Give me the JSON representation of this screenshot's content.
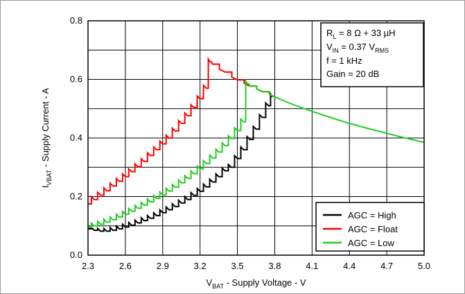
{
  "chart_data": {
    "type": "line",
    "xlabel": {
      "main": "V",
      "sub": "BAT",
      "rest": " - Supply Voltage - V"
    },
    "ylabel": {
      "main": "I",
      "sub": "VBAT",
      "rest": " - Supply Current - A"
    },
    "xlim": [
      2.3,
      5.0
    ],
    "ylim": [
      0.0,
      0.8
    ],
    "xticks": [
      "2.3",
      "2.6",
      "2.9",
      "3.2",
      "3.5",
      "3.8",
      "4.1",
      "4.4",
      "4.7",
      "5.0"
    ],
    "yticks": [
      "0.0",
      "0.2",
      "0.4",
      "0.6",
      "0.8"
    ],
    "grid": true,
    "legend_position": "bottom-right",
    "annotation": {
      "line1": {
        "a": "R",
        "a_sub": "L",
        "b": " = 8 Ω + 33 µH"
      },
      "line2": {
        "a": "V",
        "a_sub": "IN",
        "b": " = 0.37 V",
        "b_sub": "RMS"
      },
      "line3": "f = 1 kHz",
      "line4": "Gain = 20 dB"
    },
    "series": [
      {
        "name": "AGC = High",
        "color": "#000000",
        "x": [
          2.3,
          2.35,
          2.4,
          2.45,
          2.5,
          2.55,
          2.6,
          2.65,
          2.7,
          2.75,
          2.8,
          2.85,
          2.9,
          2.95,
          3.0,
          3.05,
          3.1,
          3.15,
          3.2,
          3.25,
          3.3,
          3.35,
          3.4,
          3.45,
          3.5,
          3.55,
          3.6,
          3.65,
          3.7,
          3.75,
          3.78
        ],
        "y": [
          0.09,
          0.085,
          0.082,
          0.082,
          0.085,
          0.09,
          0.096,
          0.102,
          0.11,
          0.118,
          0.126,
          0.135,
          0.145,
          0.155,
          0.166,
          0.178,
          0.19,
          0.204,
          0.218,
          0.233,
          0.25,
          0.268,
          0.288,
          0.3,
          0.33,
          0.36,
          0.395,
          0.43,
          0.47,
          0.51,
          0.54
        ]
      },
      {
        "name": "AGC = Float",
        "color": "#ff0000",
        "x": [
          2.3,
          2.35,
          2.4,
          2.45,
          2.5,
          2.55,
          2.6,
          2.65,
          2.7,
          2.75,
          2.8,
          2.85,
          2.9,
          2.95,
          3.0,
          3.05,
          3.1,
          3.15,
          3.2,
          3.25,
          3.28,
          3.3,
          3.4,
          3.5,
          3.6,
          3.7,
          3.8
        ],
        "y": [
          0.175,
          0.19,
          0.205,
          0.22,
          0.236,
          0.252,
          0.268,
          0.285,
          0.302,
          0.32,
          0.34,
          0.36,
          0.38,
          0.4,
          0.424,
          0.45,
          0.476,
          0.504,
          0.534,
          0.57,
          0.66,
          0.652,
          0.625,
          0.598,
          0.577,
          0.558,
          0.54
        ]
      },
      {
        "name": "AGC = Low",
        "color": "#22cc22",
        "x": [
          2.3,
          2.35,
          2.4,
          2.45,
          2.5,
          2.55,
          2.6,
          2.65,
          2.7,
          2.75,
          2.8,
          2.85,
          2.9,
          2.95,
          3.0,
          3.05,
          3.1,
          3.15,
          3.2,
          3.25,
          3.3,
          3.35,
          3.4,
          3.45,
          3.5,
          3.55,
          3.58,
          3.6,
          3.7,
          3.8,
          3.9,
          4.0,
          4.1,
          4.2,
          4.3,
          4.4,
          4.5,
          4.6,
          4.7,
          4.8,
          4.9,
          5.0
        ],
        "y": [
          0.095,
          0.1,
          0.106,
          0.113,
          0.121,
          0.13,
          0.14,
          0.15,
          0.16,
          0.171,
          0.182,
          0.194,
          0.206,
          0.219,
          0.232,
          0.247,
          0.262,
          0.278,
          0.295,
          0.313,
          0.332,
          0.352,
          0.374,
          0.398,
          0.425,
          0.455,
          0.585,
          0.577,
          0.558,
          0.54,
          0.522,
          0.506,
          0.491,
          0.477,
          0.463,
          0.45,
          0.438,
          0.427,
          0.416,
          0.405,
          0.395,
          0.385
        ]
      }
    ]
  }
}
